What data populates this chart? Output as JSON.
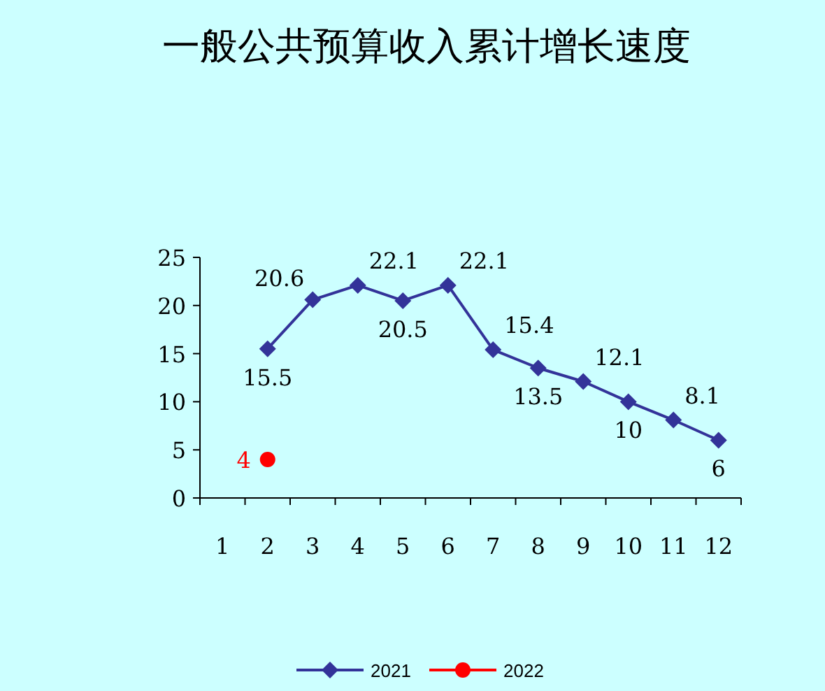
{
  "chart_data": {
    "type": "line",
    "title": "一般公共预算收入累计增长速度",
    "categories": [
      "1",
      "2",
      "3",
      "4",
      "5",
      "6",
      "7",
      "8",
      "9",
      "10",
      "11",
      "12"
    ],
    "series": [
      {
        "name": "2021",
        "color": "#333399",
        "marker": "diamond",
        "values": [
          null,
          15.5,
          20.6,
          22.1,
          20.5,
          22.1,
          15.4,
          13.5,
          12.1,
          10,
          8.1,
          6
        ]
      },
      {
        "name": "2022",
        "color": "#ff0000",
        "marker": "circle",
        "values": [
          null,
          4,
          null,
          null,
          null,
          null,
          null,
          null,
          null,
          null,
          null,
          null
        ]
      }
    ],
    "ylim": [
      0,
      25
    ],
    "yticks": [
      0,
      5,
      10,
      15,
      20,
      25
    ],
    "data_labels": true,
    "legend": "bottom",
    "grid": false
  }
}
